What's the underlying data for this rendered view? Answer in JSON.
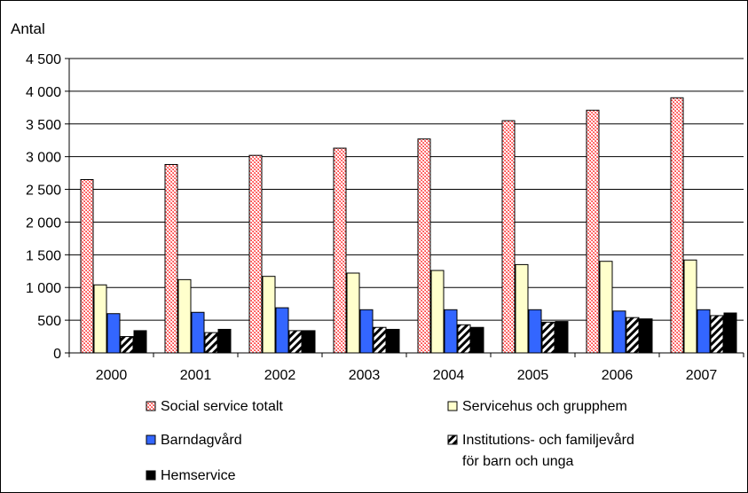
{
  "chart_data": {
    "type": "bar",
    "ylabel": "Antal",
    "ylim": [
      0,
      4500
    ],
    "yticks": [
      0,
      500,
      1000,
      1500,
      2000,
      2500,
      3000,
      3500,
      4000,
      4500
    ],
    "ytick_labels": [
      "0",
      "500",
      "1 000",
      "1 500",
      "2 000",
      "2 500",
      "3 000",
      "3 500",
      "4 000",
      "4 500"
    ],
    "categories": [
      "2000",
      "2001",
      "2002",
      "2003",
      "2004",
      "2005",
      "2006",
      "2007"
    ],
    "grid": "horizontal",
    "legend_position": "bottom",
    "series": [
      {
        "name": "Social service totalt",
        "pattern": "crosshatch",
        "color": "#ff8080",
        "values": [
          2650,
          2880,
          3020,
          3130,
          3270,
          3550,
          3710,
          3900
        ]
      },
      {
        "name": "Servicehus och grupphem",
        "pattern": "solid",
        "color": "#ffffcc",
        "values": [
          1040,
          1120,
          1170,
          1220,
          1260,
          1350,
          1400,
          1420
        ]
      },
      {
        "name": "Barndagvård",
        "pattern": "solid",
        "color": "#3366ff",
        "values": [
          600,
          620,
          690,
          660,
          660,
          660,
          640,
          660
        ]
      },
      {
        "name": "Institutions- och familjevård\nför barn och unga",
        "pattern": "diagonal",
        "color": "#ffffff",
        "values": [
          250,
          310,
          340,
          390,
          430,
          470,
          540,
          570
        ]
      },
      {
        "name": "Hemservice",
        "pattern": "solid",
        "color": "#000000",
        "values": [
          340,
          360,
          340,
          360,
          390,
          480,
          520,
          610
        ]
      }
    ]
  }
}
